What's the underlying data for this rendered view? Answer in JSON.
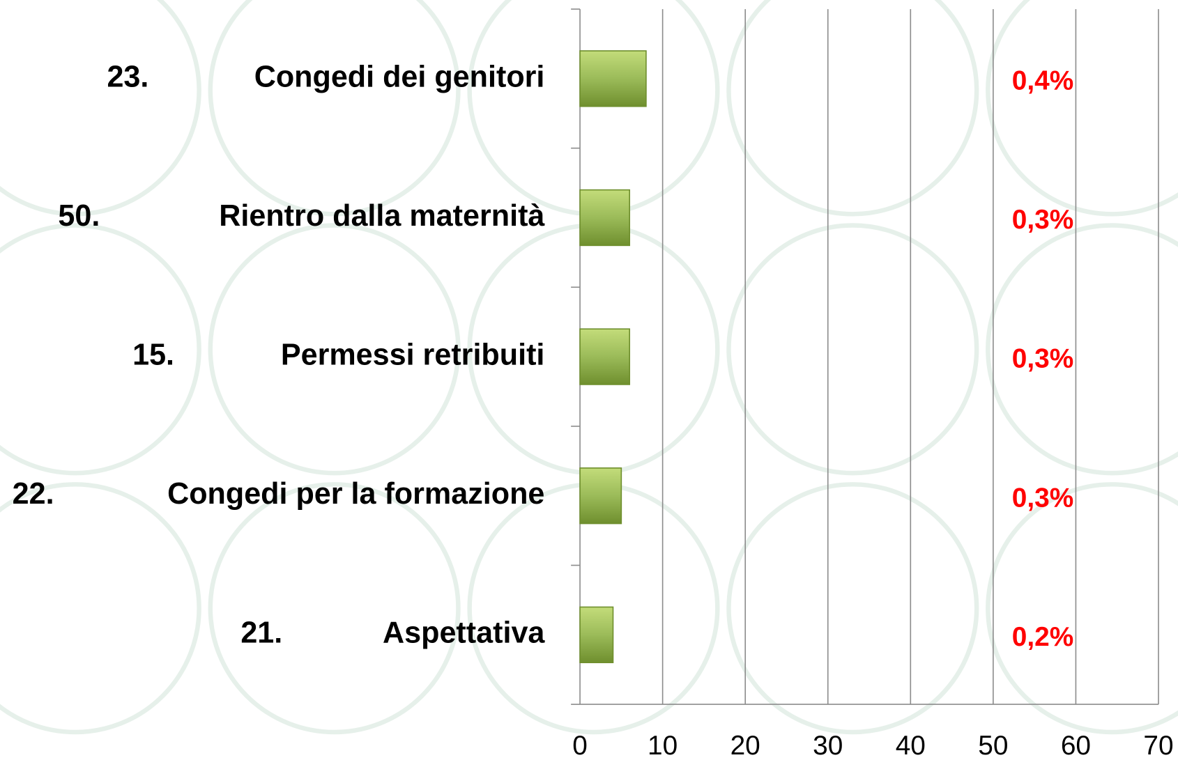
{
  "chart_data": {
    "type": "bar",
    "orientation": "horizontal",
    "ranks": [
      "23.",
      "50.",
      "15.",
      "22.",
      "21."
    ],
    "categories": [
      "Congedi dei genitori",
      "Rientro dalla maternità",
      "Permessi retribuiti",
      "Congedi per la formazione",
      "Aspettativa"
    ],
    "values": [
      8,
      6,
      6,
      5,
      4
    ],
    "percent_labels": [
      "0,4%",
      "0,3%",
      "0,3%",
      "0,3%",
      "0,2%"
    ],
    "color": "#9bbb59",
    "xlim": [
      0,
      70
    ],
    "xticks": [
      0,
      10,
      20,
      30,
      40,
      50,
      60,
      70
    ],
    "grid": true
  }
}
